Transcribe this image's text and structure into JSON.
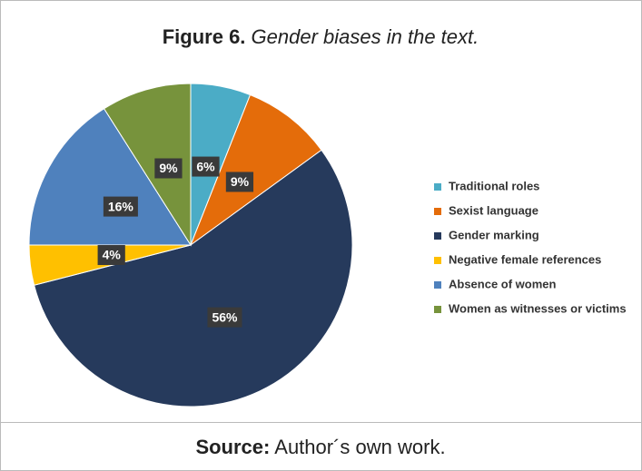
{
  "chart_data": {
    "type": "pie",
    "title_label": "Figure 6.",
    "title": "Gender biases in the text.",
    "categories": [
      "Traditional roles",
      "Sexist language",
      "Gender marking",
      "Negative female references",
      "Absence of women",
      "Women as witnesses or victims"
    ],
    "values": [
      6,
      9,
      56,
      4,
      16,
      9
    ],
    "value_labels": [
      "6%",
      "9%",
      "56%",
      "4%",
      "16%",
      "9%"
    ],
    "colors": [
      "#4bacc6",
      "#e46c0a",
      "#263a5c",
      "#ffc000",
      "#4f81bd",
      "#77933c"
    ],
    "legend": "right",
    "source_label": "Source:",
    "source": "Author´s own work."
  }
}
